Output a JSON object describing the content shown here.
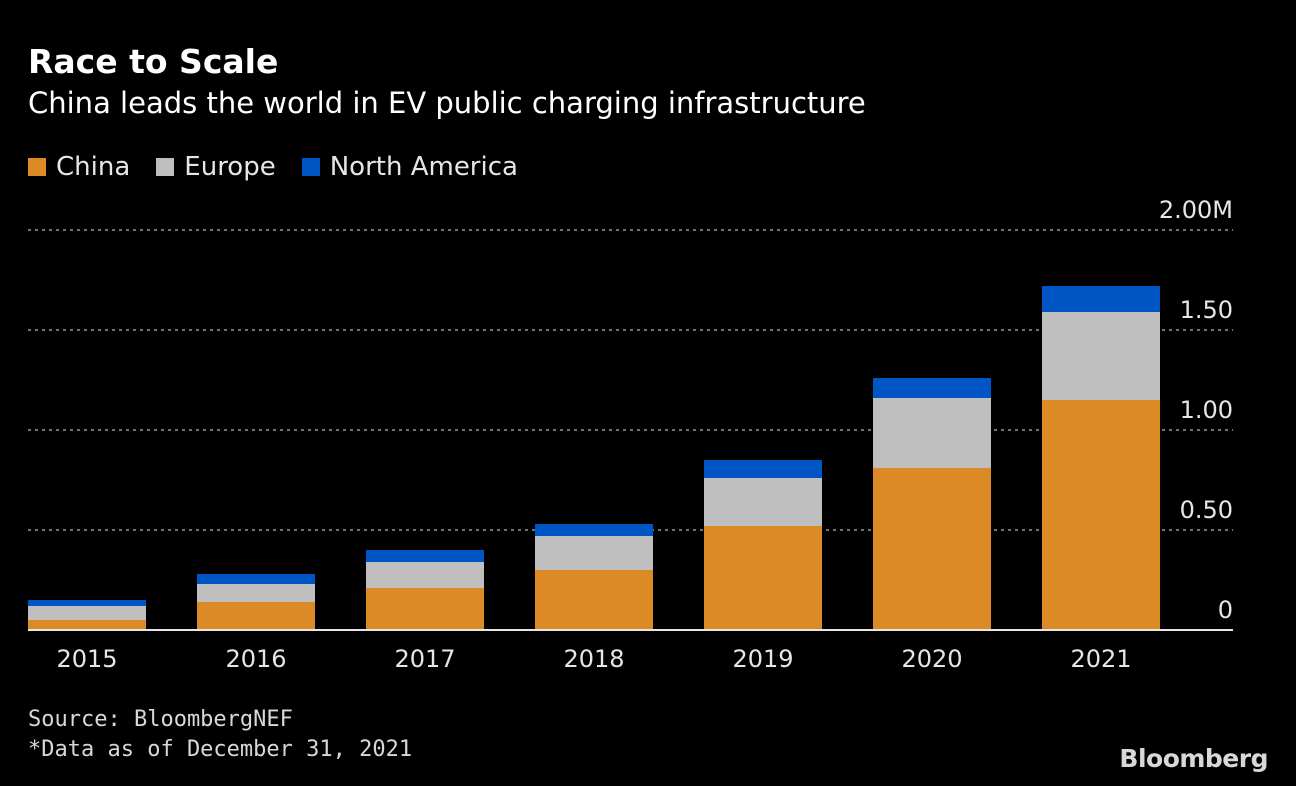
{
  "title": "Race to Scale",
  "subtitle": "China leads the world in EV public charging infrastructure",
  "source": "Source: BloombergNEF",
  "footnote": "*Data as of December 31, 2021",
  "logo": "Bloomberg",
  "chart_data": {
    "type": "bar",
    "stacked": true,
    "categories": [
      "2015",
      "2016",
      "2017",
      "2018",
      "2019",
      "2020",
      "2021"
    ],
    "series": [
      {
        "name": "China",
        "color": "#dc8a26",
        "values": [
          0.05,
          0.14,
          0.21,
          0.3,
          0.52,
          0.81,
          1.15
        ]
      },
      {
        "name": "Europe",
        "color": "#bfbfbf",
        "values": [
          0.07,
          0.09,
          0.13,
          0.17,
          0.24,
          0.35,
          0.44
        ]
      },
      {
        "name": "North America",
        "color": "#0055c4",
        "values": [
          0.03,
          0.05,
          0.06,
          0.06,
          0.09,
          0.1,
          0.13
        ]
      }
    ],
    "ylim": [
      0,
      2.0
    ],
    "yticks": [
      0,
      0.5,
      1.0,
      1.5,
      2.0
    ],
    "ytick_labels": [
      "0",
      "0.50",
      "1.00",
      "1.50",
      "2.00M"
    ],
    "yaxis_position": "right",
    "grid": true,
    "legend_position": "top-left"
  }
}
